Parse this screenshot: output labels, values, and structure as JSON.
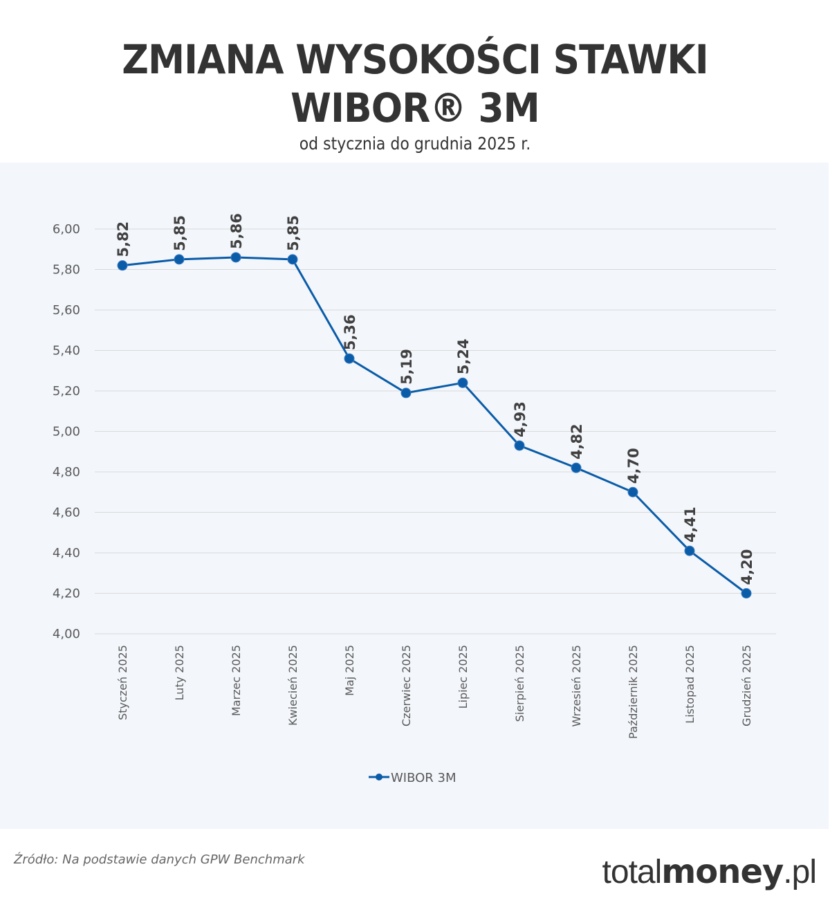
{
  "header": {
    "title_line1": "ZMIANA WYSOKOŚCI STAWKI",
    "title_line2": "WIBOR® 3M",
    "subtitle": "od stycznia do grudnia 2025 r."
  },
  "footer": {
    "source": "Źródło: Na podstawie danych GPW Benchmark",
    "logo_light": "total",
    "logo_bold": "money",
    "logo_suffix": ".pl"
  },
  "colors": {
    "line": "#0a5ca8",
    "marker": "#0a5ca8",
    "panel_bg": "#f3f6fb",
    "grid": "#d9d9d9"
  },
  "chart_data": {
    "type": "line",
    "title": "ZMIANA WYSOKOŚCI STAWKI WIBOR® 3M",
    "subtitle": "od stycznia do grudnia 2025 r.",
    "xlabel": "",
    "ylabel": "",
    "categories": [
      "Styczeń 2025",
      "Luty 2025",
      "Marzec 2025",
      "Kwiecień 2025",
      "Maj 2025",
      "Czerwiec 2025",
      "Lipiec 2025",
      "Sierpień 2025",
      "Wrzesień 2025",
      "Październik 2025",
      "Listopad 2025",
      "Grudzień 2025"
    ],
    "series": [
      {
        "name": "WIBOR 3M",
        "values": [
          5.82,
          5.85,
          5.86,
          5.85,
          5.36,
          5.19,
          5.24,
          4.93,
          4.82,
          4.7,
          4.41,
          4.2
        ],
        "labels": [
          "5,82",
          "5,85",
          "5,86",
          "5,85",
          "5,36",
          "5,19",
          "5,24",
          "4,93",
          "4,82",
          "4,70",
          "4,41",
          "4,20"
        ]
      }
    ],
    "yticks": [
      "4,00",
      "4,20",
      "4,40",
      "4,60",
      "4,80",
      "5,00",
      "5,20",
      "5,40",
      "5,60",
      "5,80",
      "6,00"
    ],
    "ylim": [
      4.0,
      6.0
    ],
    "grid": true,
    "legend_position": "bottom",
    "legend": [
      "WIBOR 3M"
    ]
  }
}
